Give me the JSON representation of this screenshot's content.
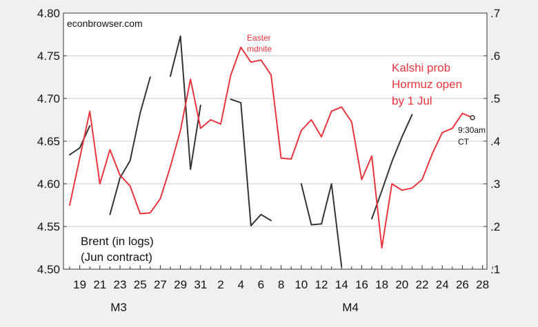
{
  "chart_data": {
    "type": "line",
    "source_label": "econbrowser.com",
    "x_tick_labels": [
      "19",
      "21",
      "23",
      "25",
      "27",
      "29",
      "31",
      "2",
      "4",
      "6",
      "8",
      "10",
      "12",
      "14",
      "16",
      "18",
      "20",
      "22",
      "24",
      "26",
      "28"
    ],
    "month_labels": [
      "M3",
      "M4"
    ],
    "left_axis": {
      "ylim": [
        4.5,
        4.8
      ],
      "ticks": [
        4.5,
        4.55,
        4.6,
        4.65,
        4.7,
        4.75,
        4.8
      ],
      "tick_labels": [
        "4.50",
        "4.55",
        "4.60",
        "4.65",
        "4.70",
        "4.75",
        "4.80"
      ]
    },
    "right_axis": {
      "ylim": [
        0.1,
        0.7
      ],
      "ticks": [
        0.1,
        0.2,
        0.3,
        0.4,
        0.5,
        0.6,
        0.7
      ],
      "tick_labels": [
        ".1",
        ".2",
        ".3",
        ".4",
        ".5",
        ".6",
        ".7"
      ]
    },
    "grid": true,
    "series": [
      {
        "name": "Brent (in logs)\n(Jun contract)",
        "axis": "left",
        "color": "#333333",
        "points": [
          [
            0,
            4.634
          ],
          [
            1,
            4.642
          ],
          [
            2,
            4.668
          ],
          null,
          [
            4,
            4.564
          ],
          [
            5,
            4.607
          ],
          [
            6,
            4.627
          ],
          [
            7,
            4.683
          ],
          [
            8,
            4.725
          ],
          null,
          [
            10,
            4.726
          ],
          [
            11,
            4.773
          ],
          [
            12,
            4.617
          ],
          [
            13,
            4.692
          ],
          null,
          [
            16,
            4.699
          ],
          [
            17,
            4.695
          ],
          [
            18,
            4.551
          ],
          [
            19,
            4.564
          ],
          [
            20,
            4.557
          ],
          null,
          [
            23,
            4.6
          ],
          [
            24,
            4.552
          ],
          [
            25,
            4.553
          ],
          [
            26,
            4.6
          ],
          [
            27,
            4.503
          ],
          null,
          [
            30,
            4.559
          ],
          [
            31,
            4.592
          ],
          [
            32,
            4.626
          ],
          [
            33,
            4.655
          ],
          [
            34,
            4.681
          ]
        ]
      },
      {
        "name": "Kalshi prob\nHormuz open\nby 1 Jul",
        "axis": "right",
        "color": "#e8343c",
        "points": [
          [
            0,
            0.25
          ],
          [
            1,
            0.36
          ],
          [
            2,
            0.47
          ],
          [
            3,
            0.3
          ],
          [
            4,
            0.38
          ],
          [
            5,
            0.32
          ],
          [
            6,
            0.295
          ],
          [
            7,
            0.23
          ],
          [
            8,
            0.232
          ],
          [
            9,
            0.265
          ],
          [
            10,
            0.34
          ],
          [
            11,
            0.425
          ],
          [
            12,
            0.545
          ],
          [
            13,
            0.43
          ],
          [
            14,
            0.45
          ],
          [
            15,
            0.44
          ],
          [
            16,
            0.555
          ],
          [
            17,
            0.62
          ],
          [
            18,
            0.585
          ],
          [
            19,
            0.59
          ],
          [
            20,
            0.555
          ],
          [
            21,
            0.36
          ],
          [
            22,
            0.358
          ],
          [
            23,
            0.425
          ],
          [
            24,
            0.45
          ],
          [
            25,
            0.41
          ],
          [
            26,
            0.47
          ],
          [
            27,
            0.48
          ],
          [
            28,
            0.445
          ],
          [
            29,
            0.31
          ],
          [
            30,
            0.365
          ],
          [
            31,
            0.15
          ],
          [
            32,
            0.3
          ],
          [
            33,
            0.285
          ],
          [
            34,
            0.29
          ],
          [
            35,
            0.31
          ],
          [
            36,
            0.37
          ],
          [
            37,
            0.42
          ],
          [
            38,
            0.43
          ],
          [
            39,
            0.465
          ],
          [
            40,
            0.455
          ]
        ]
      }
    ],
    "annotations": {
      "easter": "Easter\nmdnite",
      "time": "9:30am\nCT",
      "brent_legend": "Brent (in logs)\n(Jun contract)",
      "kalshi_legend": "Kalshi prob\nHormuz open\nby 1 Jul"
    },
    "end_marker": [
      40,
      0.455
    ]
  }
}
